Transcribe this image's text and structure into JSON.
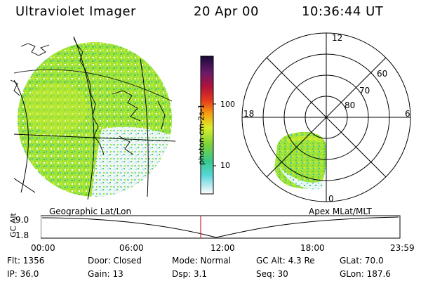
{
  "header": {
    "title": "Ultraviolet Imager",
    "date": "20 Apr 00",
    "time": "10:36:44 UT"
  },
  "colorbar": {
    "unit_label": "photon cm-2s-1",
    "ticks": [
      "100",
      "10"
    ]
  },
  "polar": {
    "mlt_labels": [
      "12",
      "18",
      "6",
      "0"
    ],
    "lat_labels": [
      "60",
      "70",
      "80"
    ]
  },
  "projection_labels": {
    "left": "Geographic Lat/Lon",
    "right": "Apex MLat/MLT"
  },
  "orbit": {
    "axis_title": "GC Alt",
    "y_ticks": [
      "9.0",
      "1.8"
    ],
    "x_ticks": [
      "00:00",
      "06:00",
      "12:00",
      "18:00",
      "23:59"
    ]
  },
  "info": {
    "flt": "Flt:  1356",
    "ip": "IP:  36.0",
    "door": "Door:  Closed",
    "gain": "Gain:  13",
    "mode": "Mode:  Normal",
    "dsp": "Dsp:       3.1",
    "gc_alt": "GC Alt:  4.3 Re",
    "seq": "Seq:  30",
    "glat": "GLat:   70.0",
    "glon": "GLon:  187.6"
  }
}
